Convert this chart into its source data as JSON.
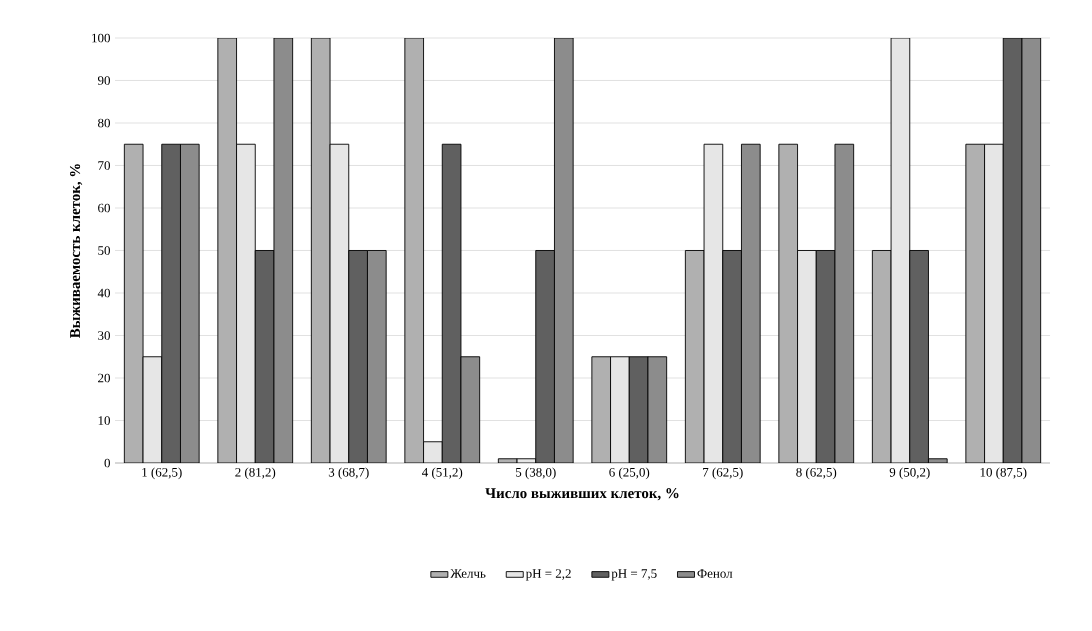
{
  "chart_data": {
    "type": "bar",
    "xlabel": "Число выживших клеток, %",
    "ylabel": "Выживаемость клеток, %",
    "categories": [
      "1 (62,5)",
      "2 (81,2)",
      "3 (68,7)",
      "4 (51,2)",
      "5 (38,0)",
      "6 (25,0)",
      "7 (62,5)",
      "8 (62,5)",
      "9 (50,2)",
      "10 (87,5)"
    ],
    "series": [
      {
        "name": "Желчь",
        "color": "#b0b0b0",
        "values": [
          75,
          100,
          100,
          100,
          1,
          25,
          50,
          75,
          50,
          75
        ]
      },
      {
        "name": "pH = 2,2",
        "color": "#e6e6e6",
        "values": [
          25,
          75,
          75,
          5,
          1,
          25,
          75,
          50,
          100,
          75
        ]
      },
      {
        "name": "pH = 7,5",
        "color": "#606060",
        "values": [
          75,
          50,
          50,
          75,
          50,
          25,
          50,
          50,
          50,
          100
        ]
      },
      {
        "name": "Фенол",
        "color": "#8c8c8c",
        "values": [
          75,
          100,
          50,
          25,
          100,
          25,
          75,
          75,
          1,
          100
        ]
      }
    ],
    "ylim": [
      0,
      100
    ],
    "yticks": [
      0,
      10,
      20,
      30,
      40,
      50,
      60,
      70,
      80,
      90,
      100
    ],
    "grid": "y",
    "legend": "bottom"
  }
}
